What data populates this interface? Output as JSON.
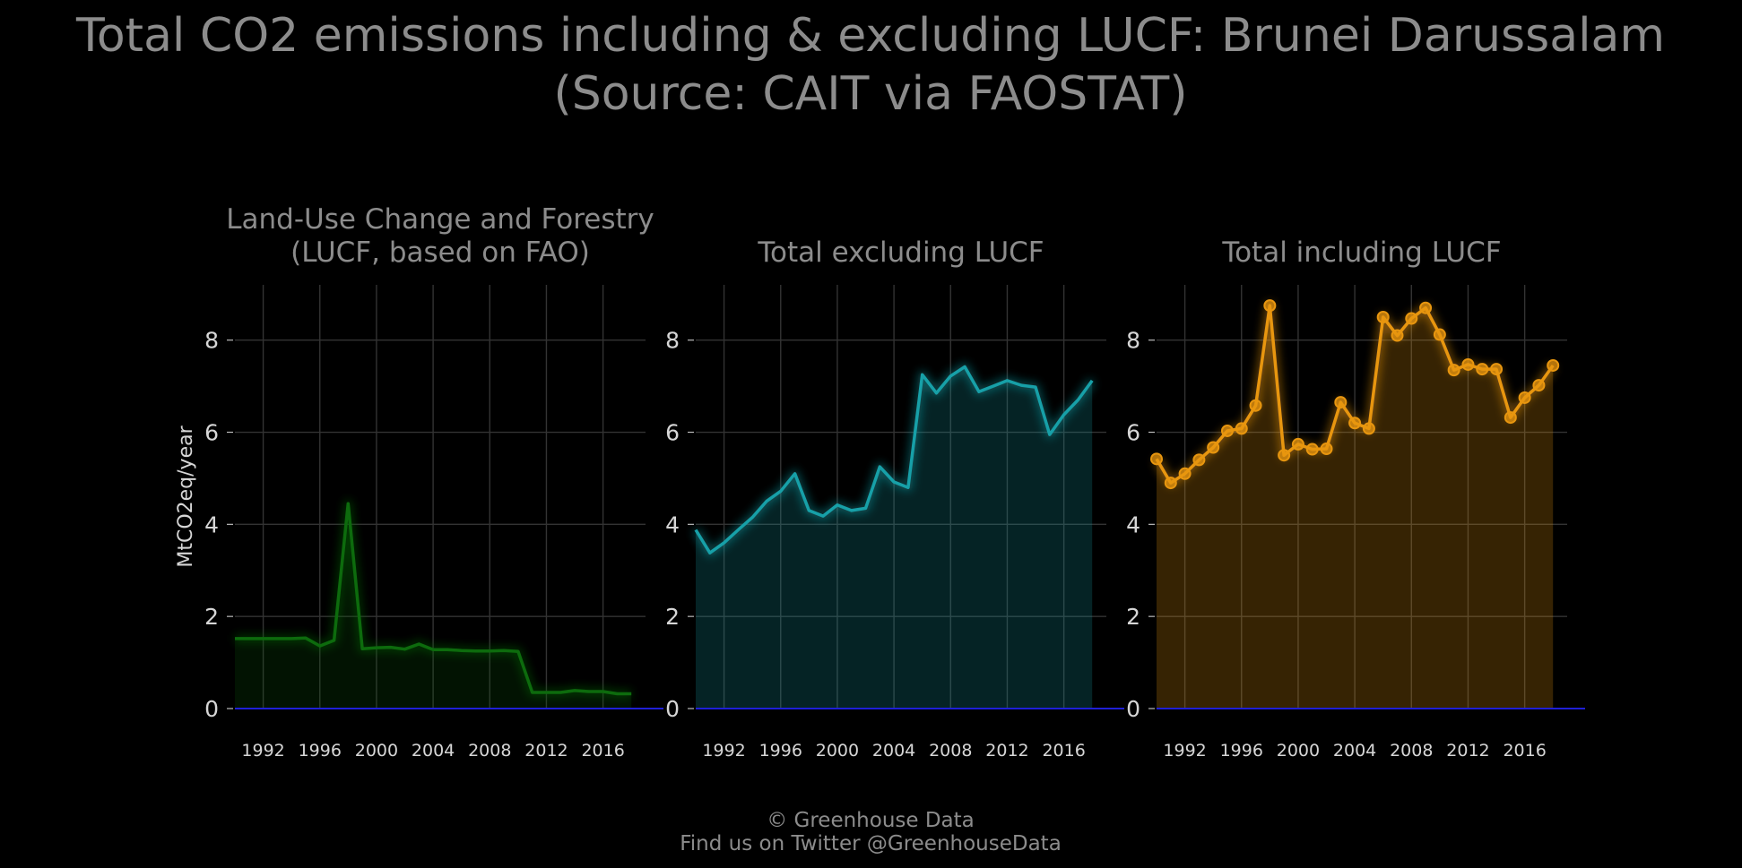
{
  "title_line1": "Total CO2 emissions including & excluding LUCF: Brunei Darussalam",
  "title_line2": "(Source: CAIT via FAOSTAT)",
  "footer_line1": "© Greenhouse Data",
  "footer_line2": "Find us on Twitter @GreenhouseData",
  "colors": {
    "background": "#000000",
    "lucf": "#0d6b0d",
    "excl": "#17a0a8",
    "incl": "#e8960f",
    "zero_line": "#1f1fd6"
  },
  "chart_data": [
    {
      "type": "area",
      "title_lines": [
        "Land-Use Change and Forestry",
        "(LUCF, based on FAO)"
      ],
      "ylabel": "MtCO2eq/year",
      "xlim": [
        1990,
        2019
      ],
      "ylim": [
        0,
        9.2
      ],
      "yticks": [
        0,
        2,
        4,
        6,
        8
      ],
      "xticks": [
        1992,
        1996,
        2000,
        2004,
        2008,
        2012,
        2016
      ],
      "grid": true,
      "markers": false,
      "series": [
        {
          "x": [
            1990,
            1991,
            1992,
            1993,
            1994,
            1995,
            1996,
            1997,
            1998,
            1999,
            2000,
            2001,
            2002,
            2003,
            2004,
            2005,
            2006,
            2007,
            2008,
            2009,
            2010,
            2011,
            2012,
            2013,
            2014,
            2015,
            2016,
            2017,
            2018
          ],
          "values": [
            1.52,
            1.52,
            1.52,
            1.52,
            1.52,
            1.53,
            1.36,
            1.48,
            4.45,
            1.3,
            1.32,
            1.33,
            1.29,
            1.4,
            1.28,
            1.28,
            1.26,
            1.25,
            1.25,
            1.26,
            1.24,
            0.35,
            0.35,
            0.35,
            0.39,
            0.37,
            0.37,
            0.32,
            0.32
          ]
        }
      ]
    },
    {
      "type": "area",
      "title_lines": [
        "Total excluding LUCF"
      ],
      "ylabel": "",
      "xlim": [
        1990,
        2019
      ],
      "ylim": [
        0,
        9.2
      ],
      "yticks": [
        0,
        2,
        4,
        6,
        8
      ],
      "xticks": [
        1992,
        1996,
        2000,
        2004,
        2008,
        2012,
        2016
      ],
      "grid": true,
      "markers": false,
      "series": [
        {
          "x": [
            1990,
            1991,
            1992,
            1993,
            1994,
            1995,
            1996,
            1997,
            1998,
            1999,
            2000,
            2001,
            2002,
            2003,
            2004,
            2005,
            2006,
            2007,
            2008,
            2009,
            2010,
            2011,
            2012,
            2013,
            2014,
            2015,
            2016,
            2017,
            2018
          ],
          "values": [
            3.88,
            3.38,
            3.6,
            3.88,
            4.15,
            4.5,
            4.72,
            5.1,
            4.3,
            4.18,
            4.42,
            4.3,
            4.35,
            5.25,
            4.92,
            4.8,
            7.25,
            6.85,
            7.22,
            7.42,
            6.88,
            7.0,
            7.12,
            7.02,
            6.98,
            5.95,
            6.38,
            6.7,
            7.12
          ]
        }
      ]
    },
    {
      "type": "area",
      "title_lines": [
        "Total including LUCF"
      ],
      "ylabel": "",
      "xlim": [
        1990,
        2019
      ],
      "ylim": [
        0,
        9.2
      ],
      "yticks": [
        0,
        2,
        4,
        6,
        8
      ],
      "xticks": [
        1992,
        1996,
        2000,
        2004,
        2008,
        2012,
        2016
      ],
      "grid": true,
      "markers": true,
      "series": [
        {
          "x": [
            1990,
            1991,
            1992,
            1993,
            1994,
            1995,
            1996,
            1997,
            1998,
            1999,
            2000,
            2001,
            2002,
            2003,
            2004,
            2005,
            2006,
            2007,
            2008,
            2009,
            2010,
            2011,
            2012,
            2013,
            2014,
            2015,
            2016,
            2017,
            2018
          ],
          "values": [
            5.42,
            4.9,
            5.1,
            5.4,
            5.67,
            6.03,
            6.08,
            6.58,
            8.75,
            5.5,
            5.74,
            5.63,
            5.64,
            6.65,
            6.2,
            6.08,
            8.5,
            8.1,
            8.47,
            8.7,
            8.12,
            7.35,
            7.47,
            7.37,
            7.37,
            6.32,
            6.75,
            7.02,
            7.45
          ]
        }
      ]
    }
  ]
}
